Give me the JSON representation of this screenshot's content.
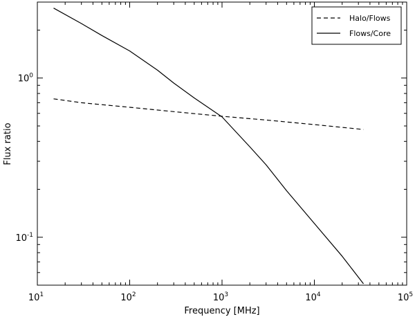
{
  "chart_data": {
    "type": "line",
    "title": "",
    "xlabel": "Frequency [MHz]",
    "ylabel": "Flux ratio",
    "xscale": "log",
    "yscale": "log",
    "xlim": [
      10,
      100000
    ],
    "ylim": [
      0.05,
      3.0
    ],
    "grid": false,
    "legend_position": "top-right",
    "x_ticks": [
      {
        "base": "10",
        "exp": "1",
        "value": 10
      },
      {
        "base": "10",
        "exp": "2",
        "value": 100
      },
      {
        "base": "10",
        "exp": "3",
        "value": 1000
      },
      {
        "base": "10",
        "exp": "4",
        "value": 10000
      },
      {
        "base": "10",
        "exp": "5",
        "value": 100000
      }
    ],
    "y_ticks": [
      {
        "base": "10",
        "exp": "0",
        "value": 1
      },
      {
        "base": "10",
        "exp": "-1",
        "value": 0.1
      }
    ],
    "series": [
      {
        "name": "Halo/Flows",
        "style": "dashed",
        "color": "#000000",
        "x": [
          15,
          30,
          100,
          300,
          1000,
          3000,
          10000,
          34000
        ],
        "y": [
          0.74,
          0.7,
          0.655,
          0.615,
          0.575,
          0.545,
          0.51,
          0.475
        ]
      },
      {
        "name": "Flows/Core",
        "style": "solid",
        "color": "#000000",
        "x": [
          15,
          30,
          50,
          100,
          200,
          300,
          500,
          1000,
          2000,
          3000,
          5000,
          10000,
          20000,
          34000
        ],
        "y": [
          2.75,
          2.2,
          1.85,
          1.48,
          1.12,
          0.93,
          0.75,
          0.57,
          0.37,
          0.285,
          0.196,
          0.122,
          0.076,
          0.051
        ]
      }
    ]
  }
}
